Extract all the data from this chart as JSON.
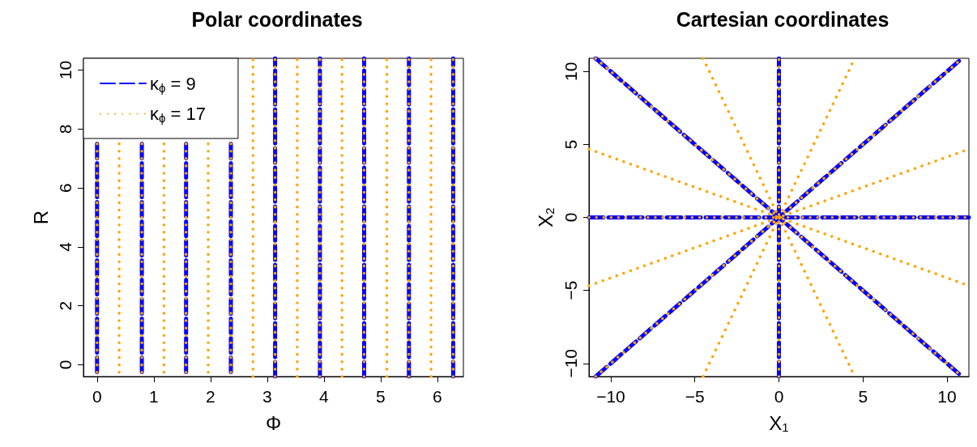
{
  "chart_data": [
    {
      "type": "line",
      "title": "Polar coordinates",
      "xlabel": "Φ",
      "ylabel": "R",
      "xlim": [
        -0.24,
        6.46
      ],
      "xticks": [
        0,
        1,
        2,
        3,
        4,
        5,
        6
      ],
      "ylim": [
        -0.4,
        10.4
      ],
      "yticks": [
        0,
        2,
        4,
        6,
        8,
        10
      ],
      "legend": "top left",
      "marker": "none",
      "series": [
        {
          "name": "κ$_{ϕ}$ = 9",
          "color": "#0000ff",
          "line_style": "dashed",
          "x": [
            0,
            0
          ],
          "values": [
            7.5,
            -0.4
          ]
        },
        {
          "color": "#0000ff",
          "line_style": "dashed",
          "x": [
            0.79,
            0.79
          ],
          "values": [
            7.5,
            -0.4
          ]
        },
        {
          "color": "#0000ff",
          "line_style": "dashed",
          "x": [
            1.57,
            1.57
          ],
          "values": [
            7.5,
            -0.4
          ]
        },
        {
          "color": "#0000ff",
          "line_style": "dashed",
          "x": [
            2.36,
            2.36
          ],
          "values": [
            7.5,
            -0.4
          ]
        },
        {
          "color": "#0000ff",
          "line_style": "dashed",
          "x": [
            3.14,
            3.14
          ],
          "values": [
            -0.4,
            10.4
          ]
        },
        {
          "color": "#0000ff",
          "line_style": "dashed",
          "x": [
            3.93,
            3.93
          ],
          "values": [
            -0.4,
            10.4
          ]
        },
        {
          "color": "#0000ff",
          "line_style": "dashed",
          "x": [
            4.71,
            4.71
          ],
          "values": [
            -0.4,
            10.4
          ]
        },
        {
          "color": "#0000ff",
          "line_style": "dashed",
          "x": [
            5.5,
            5.5
          ],
          "values": [
            -0.4,
            10.4
          ]
        },
        {
          "color": "#0000ff",
          "line_style": "dashed",
          "x": [
            6.28,
            6.28
          ],
          "values": [
            -0.4,
            10.4
          ]
        },
        {
          "name": "κ$_{ϕ}$ = 17",
          "color": "#ffa500",
          "line_style": "dotted",
          "x": [
            0,
            0
          ],
          "values": [
            7.5,
            -0.4
          ]
        },
        {
          "color": "#ffa500",
          "line_style": "dotted",
          "x": [
            0.39,
            0.39
          ],
          "values": [
            7.5,
            -0.4
          ]
        },
        {
          "color": "#ffa500",
          "line_style": "dotted",
          "x": [
            0.79,
            0.79
          ],
          "values": [
            7.5,
            -0.4
          ]
        },
        {
          "color": "#ffa500",
          "line_style": "dotted",
          "x": [
            1.18,
            1.18
          ],
          "values": [
            7.5,
            -0.4
          ]
        },
        {
          "color": "#ffa500",
          "line_style": "dotted",
          "x": [
            1.57,
            1.57
          ],
          "values": [
            7.5,
            -0.4
          ]
        },
        {
          "color": "#ffa500",
          "line_style": "dotted",
          "x": [
            1.96,
            1.96
          ],
          "values": [
            7.5,
            -0.4
          ]
        },
        {
          "color": "#ffa500",
          "line_style": "dotted",
          "x": [
            2.36,
            2.36
          ],
          "values": [
            7.5,
            -0.4
          ]
        },
        {
          "color": "#ffa500",
          "line_style": "dotted",
          "x": [
            2.75,
            2.75
          ],
          "values": [
            -0.4,
            10.4
          ]
        },
        {
          "color": "#ffa500",
          "line_style": "dotted",
          "x": [
            3.14,
            3.14
          ],
          "values": [
            -0.4,
            10.4
          ]
        },
        {
          "color": "#ffa500",
          "line_style": "dotted",
          "x": [
            3.53,
            3.53
          ],
          "values": [
            -0.4,
            10.4
          ]
        },
        {
          "color": "#ffa500",
          "line_style": "dotted",
          "x": [
            3.93,
            3.93
          ],
          "values": [
            -0.4,
            10.4
          ]
        },
        {
          "color": "#ffa500",
          "line_style": "dotted",
          "x": [
            4.32,
            4.32
          ],
          "values": [
            -0.4,
            10.4
          ]
        },
        {
          "color": "#ffa500",
          "line_style": "dotted",
          "x": [
            4.71,
            4.71
          ],
          "values": [
            -0.4,
            10.4
          ]
        },
        {
          "color": "#ffa500",
          "line_style": "dotted",
          "x": [
            5.11,
            5.11
          ],
          "values": [
            -0.4,
            10.4
          ]
        },
        {
          "color": "#ffa500",
          "line_style": "dotted",
          "x": [
            5.5,
            5.5
          ],
          "values": [
            -0.4,
            10.4
          ]
        },
        {
          "color": "#ffa500",
          "line_style": "dotted",
          "x": [
            5.89,
            5.89
          ],
          "values": [
            -0.4,
            10.4
          ]
        },
        {
          "color": "#ffa500",
          "line_style": "dotted",
          "x": [
            6.28,
            6.28
          ],
          "values": [
            -0.4,
            10.4
          ]
        }
      ]
    },
    {
      "type": "line",
      "title": "Cartesian coordinates",
      "xlabel": "X$_{1}$",
      "ylabel": "X$_{2}$",
      "xlim": [
        -11.3,
        11.3
      ],
      "xticks": [
        -10,
        -5,
        0,
        5,
        10
      ],
      "ylim": [
        -10.9,
        10.9
      ],
      "yticks": [
        -10,
        -5,
        0,
        5,
        10
      ],
      "marker": "none",
      "series": [
        {
          "color": "#0000ff",
          "line_style": "dashed",
          "x": [
            -11.3,
            11.3
          ],
          "values": [
            0,
            0
          ]
        },
        {
          "color": "#0000ff",
          "line_style": "dashed",
          "x": [
            0,
            0
          ],
          "values": [
            -10.9,
            10.9
          ]
        },
        {
          "color": "#0000ff",
          "line_style": "dashed",
          "x": [
            -10.9,
            10.9
          ],
          "values": [
            -10.9,
            10.9
          ]
        },
        {
          "color": "#0000ff",
          "line_style": "dashed",
          "x": [
            -10.9,
            10.9
          ],
          "values": [
            10.9,
            -10.9
          ]
        },
        {
          "color": "#ffa500",
          "line_style": "dotted",
          "x": [
            -11.3,
            11.3
          ],
          "values": [
            0,
            0
          ]
        },
        {
          "color": "#ffa500",
          "line_style": "dotted",
          "x": [
            0,
            0
          ],
          "values": [
            -10.9,
            10.9
          ]
        },
        {
          "color": "#ffa500",
          "line_style": "dotted",
          "x": [
            -10.9,
            10.9
          ],
          "values": [
            -10.9,
            10.9
          ]
        },
        {
          "color": "#ffa500",
          "line_style": "dotted",
          "x": [
            -10.9,
            10.9
          ],
          "values": [
            10.9,
            -10.9
          ]
        },
        {
          "color": "#ffa500",
          "line_style": "dotted",
          "x": [
            -11.3,
            11.3
          ],
          "values": [
            -4.68,
            4.68
          ]
        },
        {
          "color": "#ffa500",
          "line_style": "dotted",
          "x": [
            -4.51,
            4.51
          ],
          "values": [
            -10.9,
            10.9
          ]
        },
        {
          "color": "#ffa500",
          "line_style": "dotted",
          "x": [
            -4.51,
            4.51
          ],
          "values": [
            10.9,
            -10.9
          ]
        },
        {
          "color": "#ffa500",
          "line_style": "dotted",
          "x": [
            -11.3,
            11.3
          ],
          "values": [
            4.68,
            -4.68
          ]
        }
      ]
    }
  ]
}
